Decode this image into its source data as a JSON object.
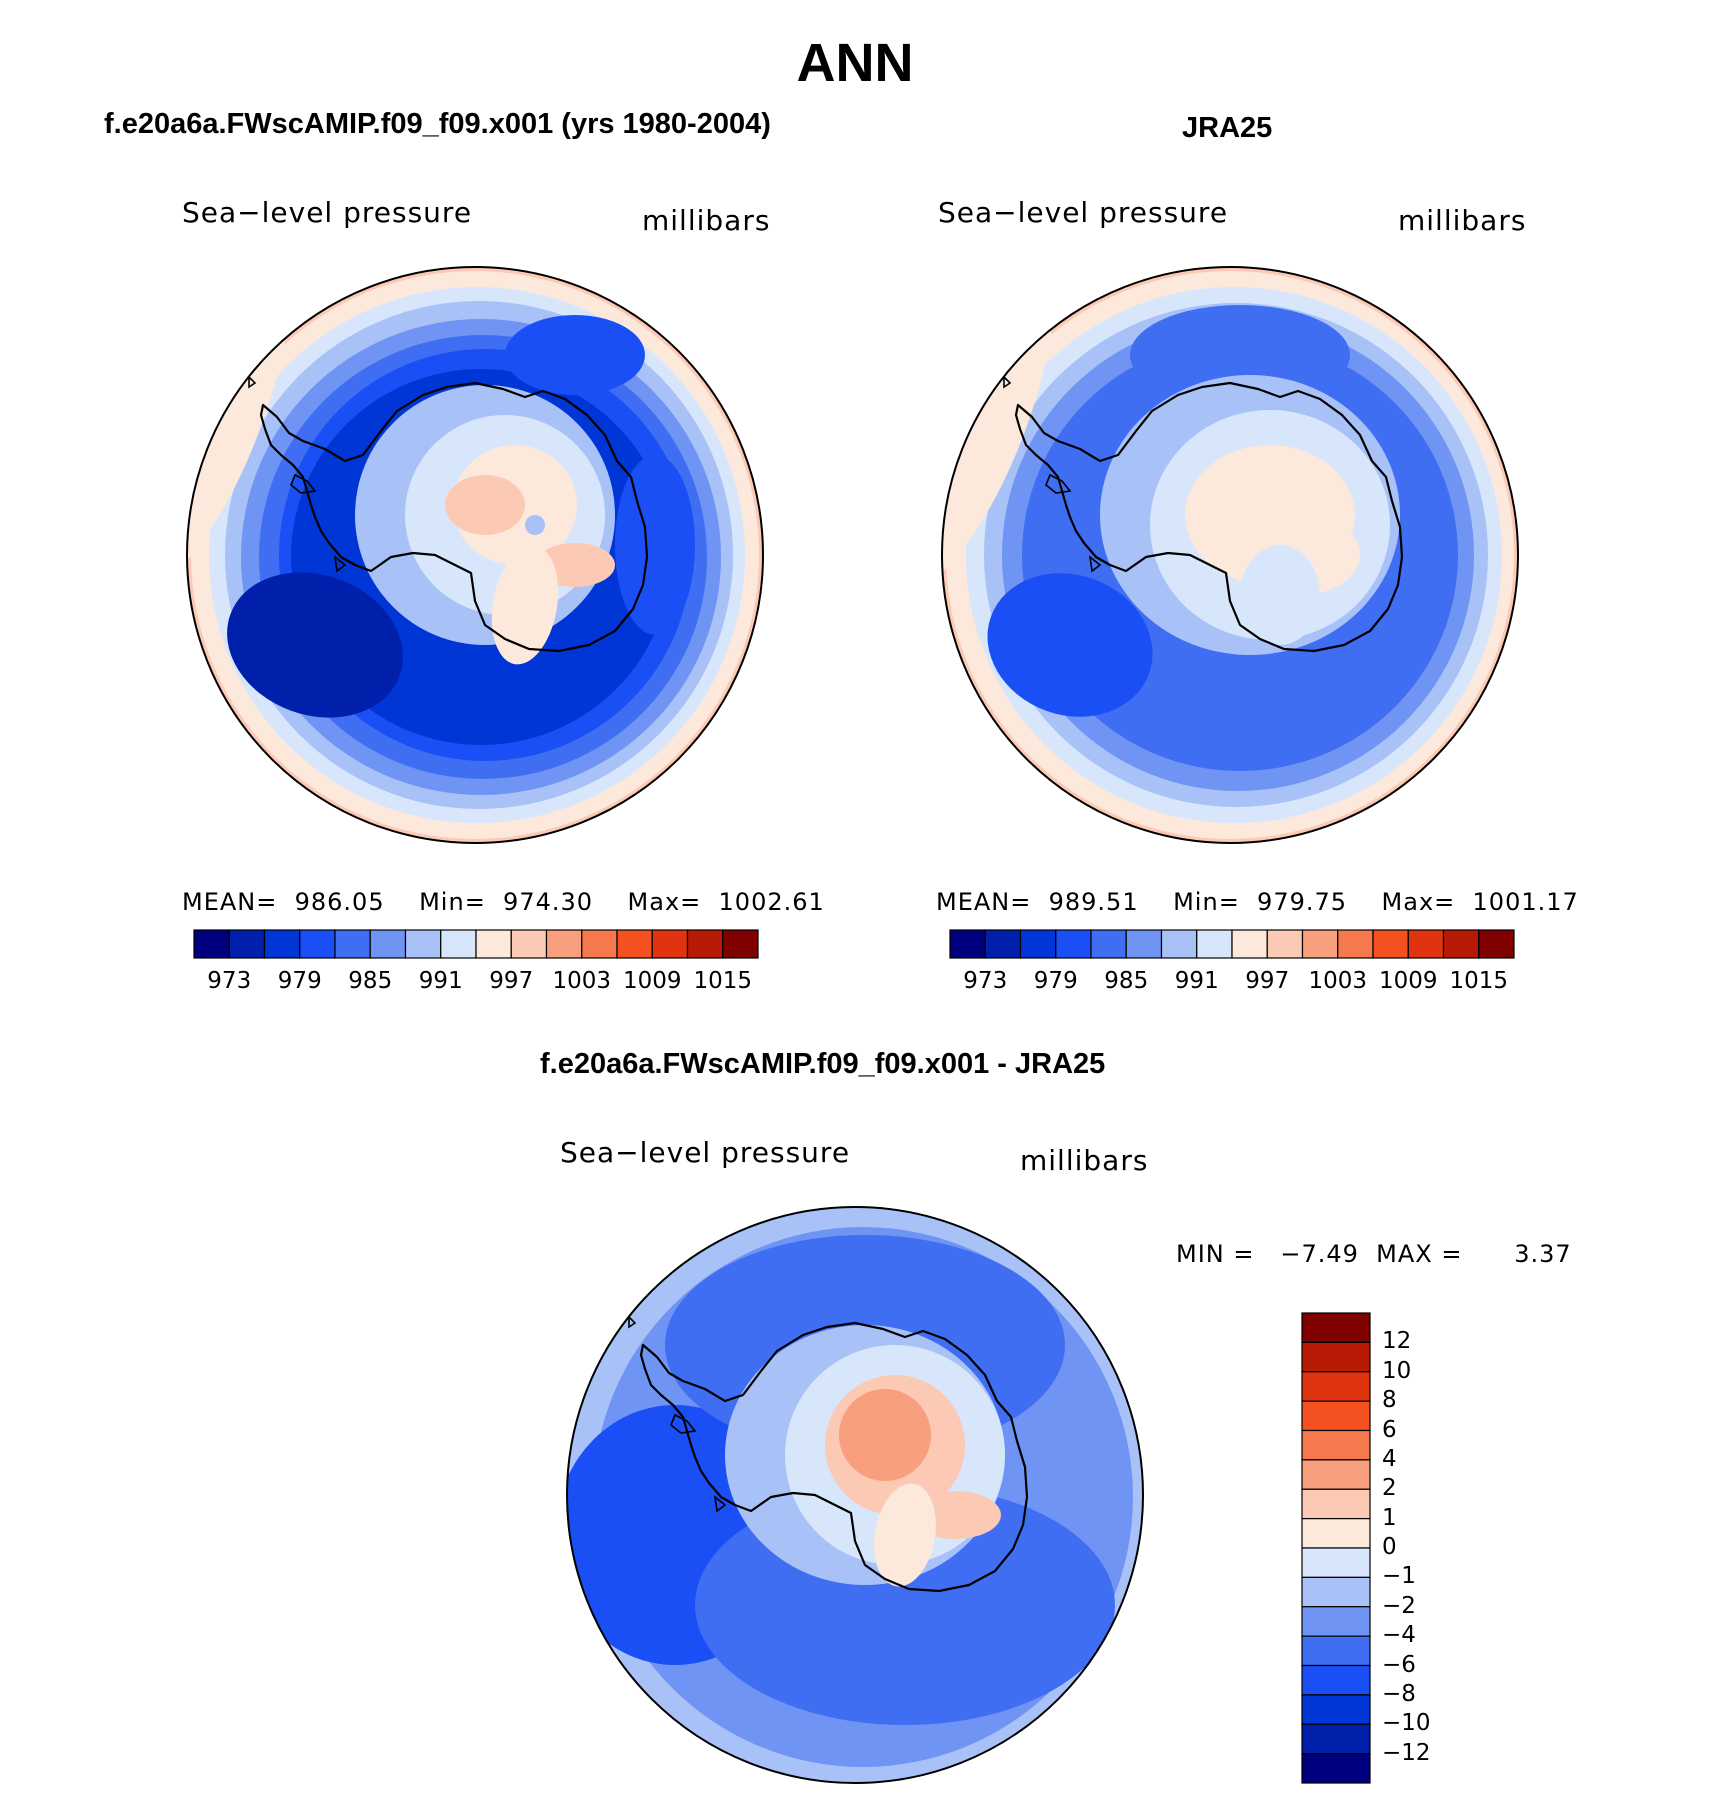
{
  "title": "ANN",
  "panels": [
    {
      "title": "f.e20a6a.FWscAMIP.f09_f09.x001 (yrs 1980-2004)",
      "variable_label": "Sea−level pressure",
      "units_label": "millibars",
      "stats": "MEAN=  986.05    Min=  974.30    Max=  1002.61",
      "colorbar_ticks": [
        "973",
        "979",
        "985",
        "991",
        "997",
        "1003",
        "1009",
        "1015"
      ]
    },
    {
      "title": "JRA25",
      "variable_label": "Sea−level pressure",
      "units_label": "millibars",
      "stats": "MEAN=  989.51    Min=  979.75    Max=  1001.17",
      "colorbar_ticks": [
        "973",
        "979",
        "985",
        "991",
        "997",
        "1003",
        "1009",
        "1015"
      ]
    },
    {
      "title": "f.e20a6a.FWscAMIP.f09_f09.x001 - JRA25",
      "variable_label": "Sea−level pressure",
      "units_label": "millibars",
      "stats": "MIN =   −7.49  MAX =      3.37",
      "colorbar_ticks": [
        "12",
        "10",
        "8",
        "6",
        "4",
        "2",
        "1",
        "0",
        "−1",
        "−2",
        "−4",
        "−6",
        "−8",
        "−10",
        "−12"
      ]
    }
  ],
  "colors": {
    "abs_scale": [
      "#00007f",
      "#0020ac",
      "#0035d6",
      "#1a4ff5",
      "#3f6ef2",
      "#6f94f3",
      "#a8c2f8",
      "#d8e6fb",
      "#fde8dc",
      "#fbc9b4",
      "#f8a07d",
      "#f6784d",
      "#f5501f",
      "#e03410",
      "#b81b05",
      "#800000"
    ],
    "diff_scale": [
      "#00007f",
      "#0020ac",
      "#0035d6",
      "#1a4ff5",
      "#3f6ef2",
      "#6f94f3",
      "#a8c2f8",
      "#d8e6fb",
      "#fde8dc",
      "#fbc9b4",
      "#f8a07d",
      "#f6784d",
      "#f5501f",
      "#e03410",
      "#b81b05",
      "#800000"
    ],
    "coastline": "#000000"
  }
}
